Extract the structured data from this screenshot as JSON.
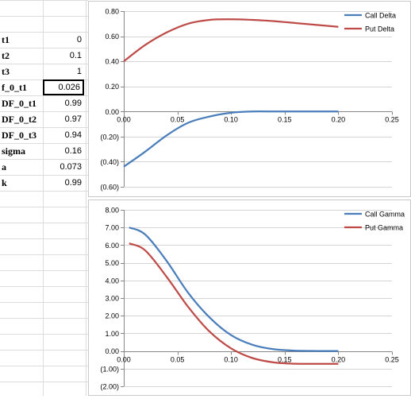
{
  "sheet": {
    "rows": [
      {
        "label": "t1",
        "value": "0"
      },
      {
        "label": "t2",
        "value": "0.1"
      },
      {
        "label": "t3",
        "value": "1"
      },
      {
        "label": "f_0_t1",
        "value": "0.026"
      },
      {
        "label": "DF_0_t1",
        "value": "0.99"
      },
      {
        "label": "DF_0_t2",
        "value": "0.97"
      },
      {
        "label": "DF_0_t3",
        "value": "0.94"
      },
      {
        "label": "sigma",
        "value": "0.16"
      },
      {
        "label": "a",
        "value": "0.073"
      },
      {
        "label": "k",
        "value": "0.99"
      }
    ],
    "selected_row": 3
  },
  "colors": {
    "call": "#4a7ebb",
    "put": "#be4b48",
    "gridline": "#d4d4d4",
    "axis": "#868686"
  },
  "chart_data": [
    {
      "type": "line",
      "title": "",
      "xlabel": "",
      "ylabel": "",
      "xlim": [
        0,
        0.25
      ],
      "ylim": [
        -0.6,
        0.8
      ],
      "xticks": [
        "0.00",
        "0.05",
        "0.10",
        "0.15",
        "0.20",
        "0.25"
      ],
      "yticks": [
        "0.80",
        "0.60",
        "0.40",
        "0.20",
        "0.00",
        "(0.20)",
        "(0.40)",
        "(0.60)"
      ],
      "grid": "horizontal",
      "legend_position": "top-right",
      "series": [
        {
          "name": "Call Delta",
          "color": "call",
          "x": [
            0,
            0.02,
            0.04,
            0.06,
            0.08,
            0.1,
            0.12,
            0.14,
            0.16,
            0.18,
            0.2
          ],
          "y": [
            -0.44,
            -0.32,
            -0.19,
            -0.09,
            -0.04,
            -0.01,
            0.0,
            0.0,
            0.0,
            0.0,
            0.0
          ]
        },
        {
          "name": "Put Delta",
          "color": "put",
          "x": [
            0,
            0.02,
            0.04,
            0.06,
            0.08,
            0.1,
            0.12,
            0.14,
            0.16,
            0.18,
            0.2
          ],
          "y": [
            0.4,
            0.53,
            0.63,
            0.7,
            0.73,
            0.735,
            0.73,
            0.72,
            0.705,
            0.69,
            0.675
          ]
        }
      ]
    },
    {
      "type": "line",
      "title": "",
      "xlabel": "",
      "ylabel": "",
      "xlim": [
        0,
        0.25
      ],
      "ylim": [
        -2,
        8
      ],
      "xticks": [
        "0.00",
        "0.05",
        "0.10",
        "0.15",
        "0.20",
        "0.25"
      ],
      "yticks": [
        "8.00",
        "7.00",
        "6.00",
        "5.00",
        "4.00",
        "3.00",
        "2.00",
        "1.00",
        "0.00",
        "(1.00)",
        "(2.00)"
      ],
      "grid": "horizontal",
      "legend_position": "top-right",
      "series": [
        {
          "name": "Call Gamma",
          "color": "call",
          "x": [
            0.005,
            0.02,
            0.04,
            0.06,
            0.08,
            0.1,
            0.12,
            0.14,
            0.16,
            0.18,
            0.2
          ],
          "y": [
            7.0,
            6.6,
            5.1,
            3.3,
            1.9,
            0.9,
            0.35,
            0.1,
            0.02,
            0.0,
            0.0
          ]
        },
        {
          "name": "Put Gamma",
          "color": "put",
          "x": [
            0.005,
            0.02,
            0.04,
            0.06,
            0.08,
            0.1,
            0.12,
            0.14,
            0.16,
            0.18,
            0.2
          ],
          "y": [
            6.1,
            5.7,
            4.2,
            2.5,
            1.1,
            0.15,
            -0.4,
            -0.65,
            -0.72,
            -0.73,
            -0.73
          ]
        }
      ]
    }
  ]
}
